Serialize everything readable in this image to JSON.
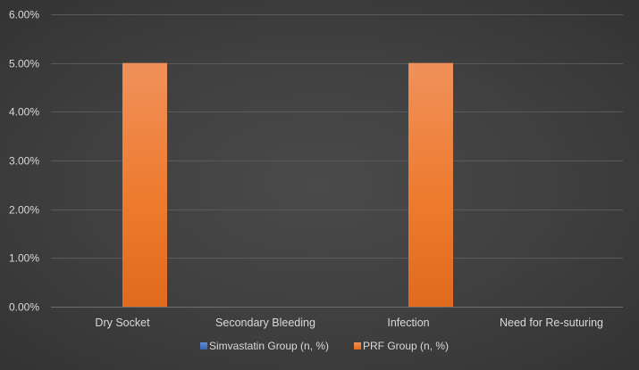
{
  "chart_data": {
    "type": "bar",
    "title": "",
    "xlabel": "",
    "ylabel": "",
    "categories": [
      "Dry Socket",
      "Secondary Bleeding",
      "Infection",
      "Need for Re-suturing"
    ],
    "series": [
      {
        "name": "Simvastatin Group (n, %)",
        "values": [
          0,
          0,
          0,
          0
        ],
        "color": "#4472c4"
      },
      {
        "name": "PRF Group (n, %)",
        "values": [
          5,
          0,
          5,
          0
        ],
        "color": "#ed7d31"
      }
    ],
    "ylim": [
      0,
      6
    ],
    "yticks": [
      0,
      1,
      2,
      3,
      4,
      5,
      6
    ],
    "ytick_labels": [
      "0.00%",
      "1.00%",
      "2.00%",
      "3.00%",
      "4.00%",
      "5.00%",
      "6.00%"
    ],
    "grid": true,
    "legend_position": "bottom",
    "colors": {
      "background": "#404040",
      "gridline": "#5a5a5a",
      "axis_text": "#d9d9d9"
    }
  }
}
